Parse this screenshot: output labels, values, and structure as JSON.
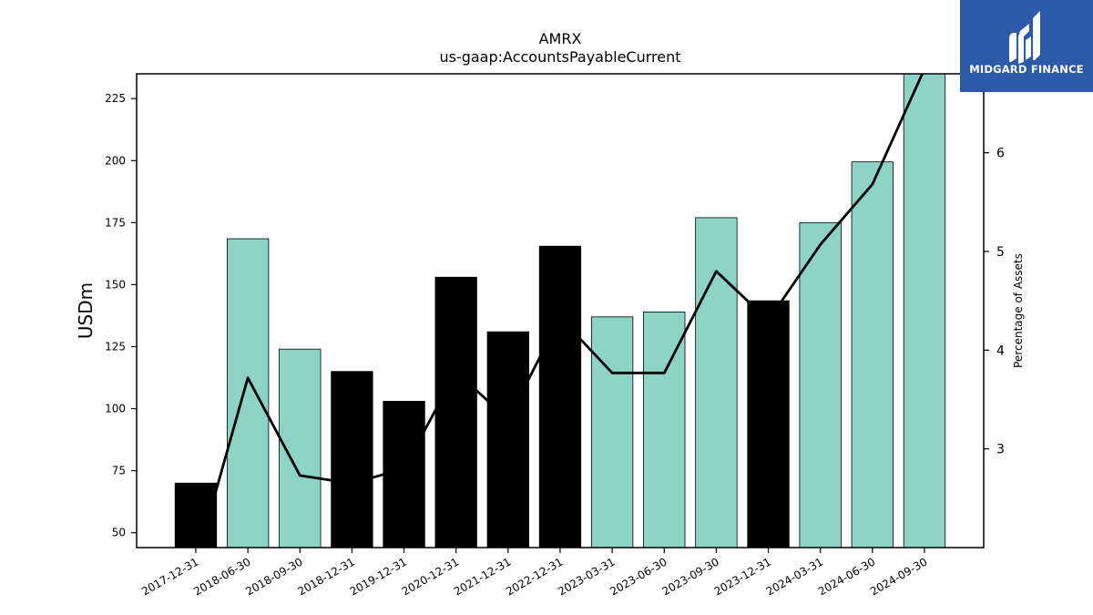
{
  "chart_data": {
    "type": "bar",
    "title": "AMRX",
    "subtitle": "us-gaap:AccountsPayableCurrent",
    "ylabel": "USDm",
    "y2label": "Percentage of Assets",
    "ylim": [
      44,
      235
    ],
    "y2lim": [
      2.0,
      6.8
    ],
    "yticks": [
      50,
      75,
      100,
      125,
      150,
      175,
      200,
      225
    ],
    "y2ticks": [
      3,
      4,
      5,
      6
    ],
    "categories": [
      "2017-12-31",
      "2018-06-30",
      "2018-09-30",
      "2018-12-31",
      "2019-12-31",
      "2020-12-31",
      "2021-12-31",
      "2022-12-31",
      "2023-03-31",
      "2023-06-30",
      "2023-09-30",
      "2023-12-31",
      "2024-03-31",
      "2024-06-30",
      "2024-09-30"
    ],
    "values": [
      70,
      168.5,
      124,
      115,
      103,
      153,
      131,
      165.5,
      137,
      139,
      177,
      143.5,
      175,
      199.5,
      236
    ],
    "period_type": [
      "annual",
      "quarterly",
      "quarterly",
      "annual",
      "annual",
      "annual",
      "annual",
      "annual",
      "quarterly",
      "quarterly",
      "quarterly",
      "annual",
      "quarterly",
      "quarterly",
      "quarterly"
    ],
    "colors": {
      "annual": "#000000",
      "quarterly": "#8dd3c7",
      "line": "#000000"
    },
    "series": [
      {
        "name": "",
        "axis": "left",
        "values": [
          70,
          168.5,
          124,
          115,
          103,
          153,
          131,
          165.5,
          137,
          139,
          177,
          143.5,
          175,
          199.5,
          236
        ]
      },
      {
        "name": "",
        "axis": "right",
        "type": "line",
        "values": [
          1.85,
          3.72,
          2.73,
          2.65,
          2.8,
          3.78,
          3.3,
          4.33,
          3.77,
          3.77,
          4.8,
          4.3,
          5.07,
          5.68,
          6.85
        ]
      }
    ],
    "grid": false
  },
  "brand": {
    "name": "MIDGARD FINANCE",
    "color": "#2c5aa8"
  }
}
